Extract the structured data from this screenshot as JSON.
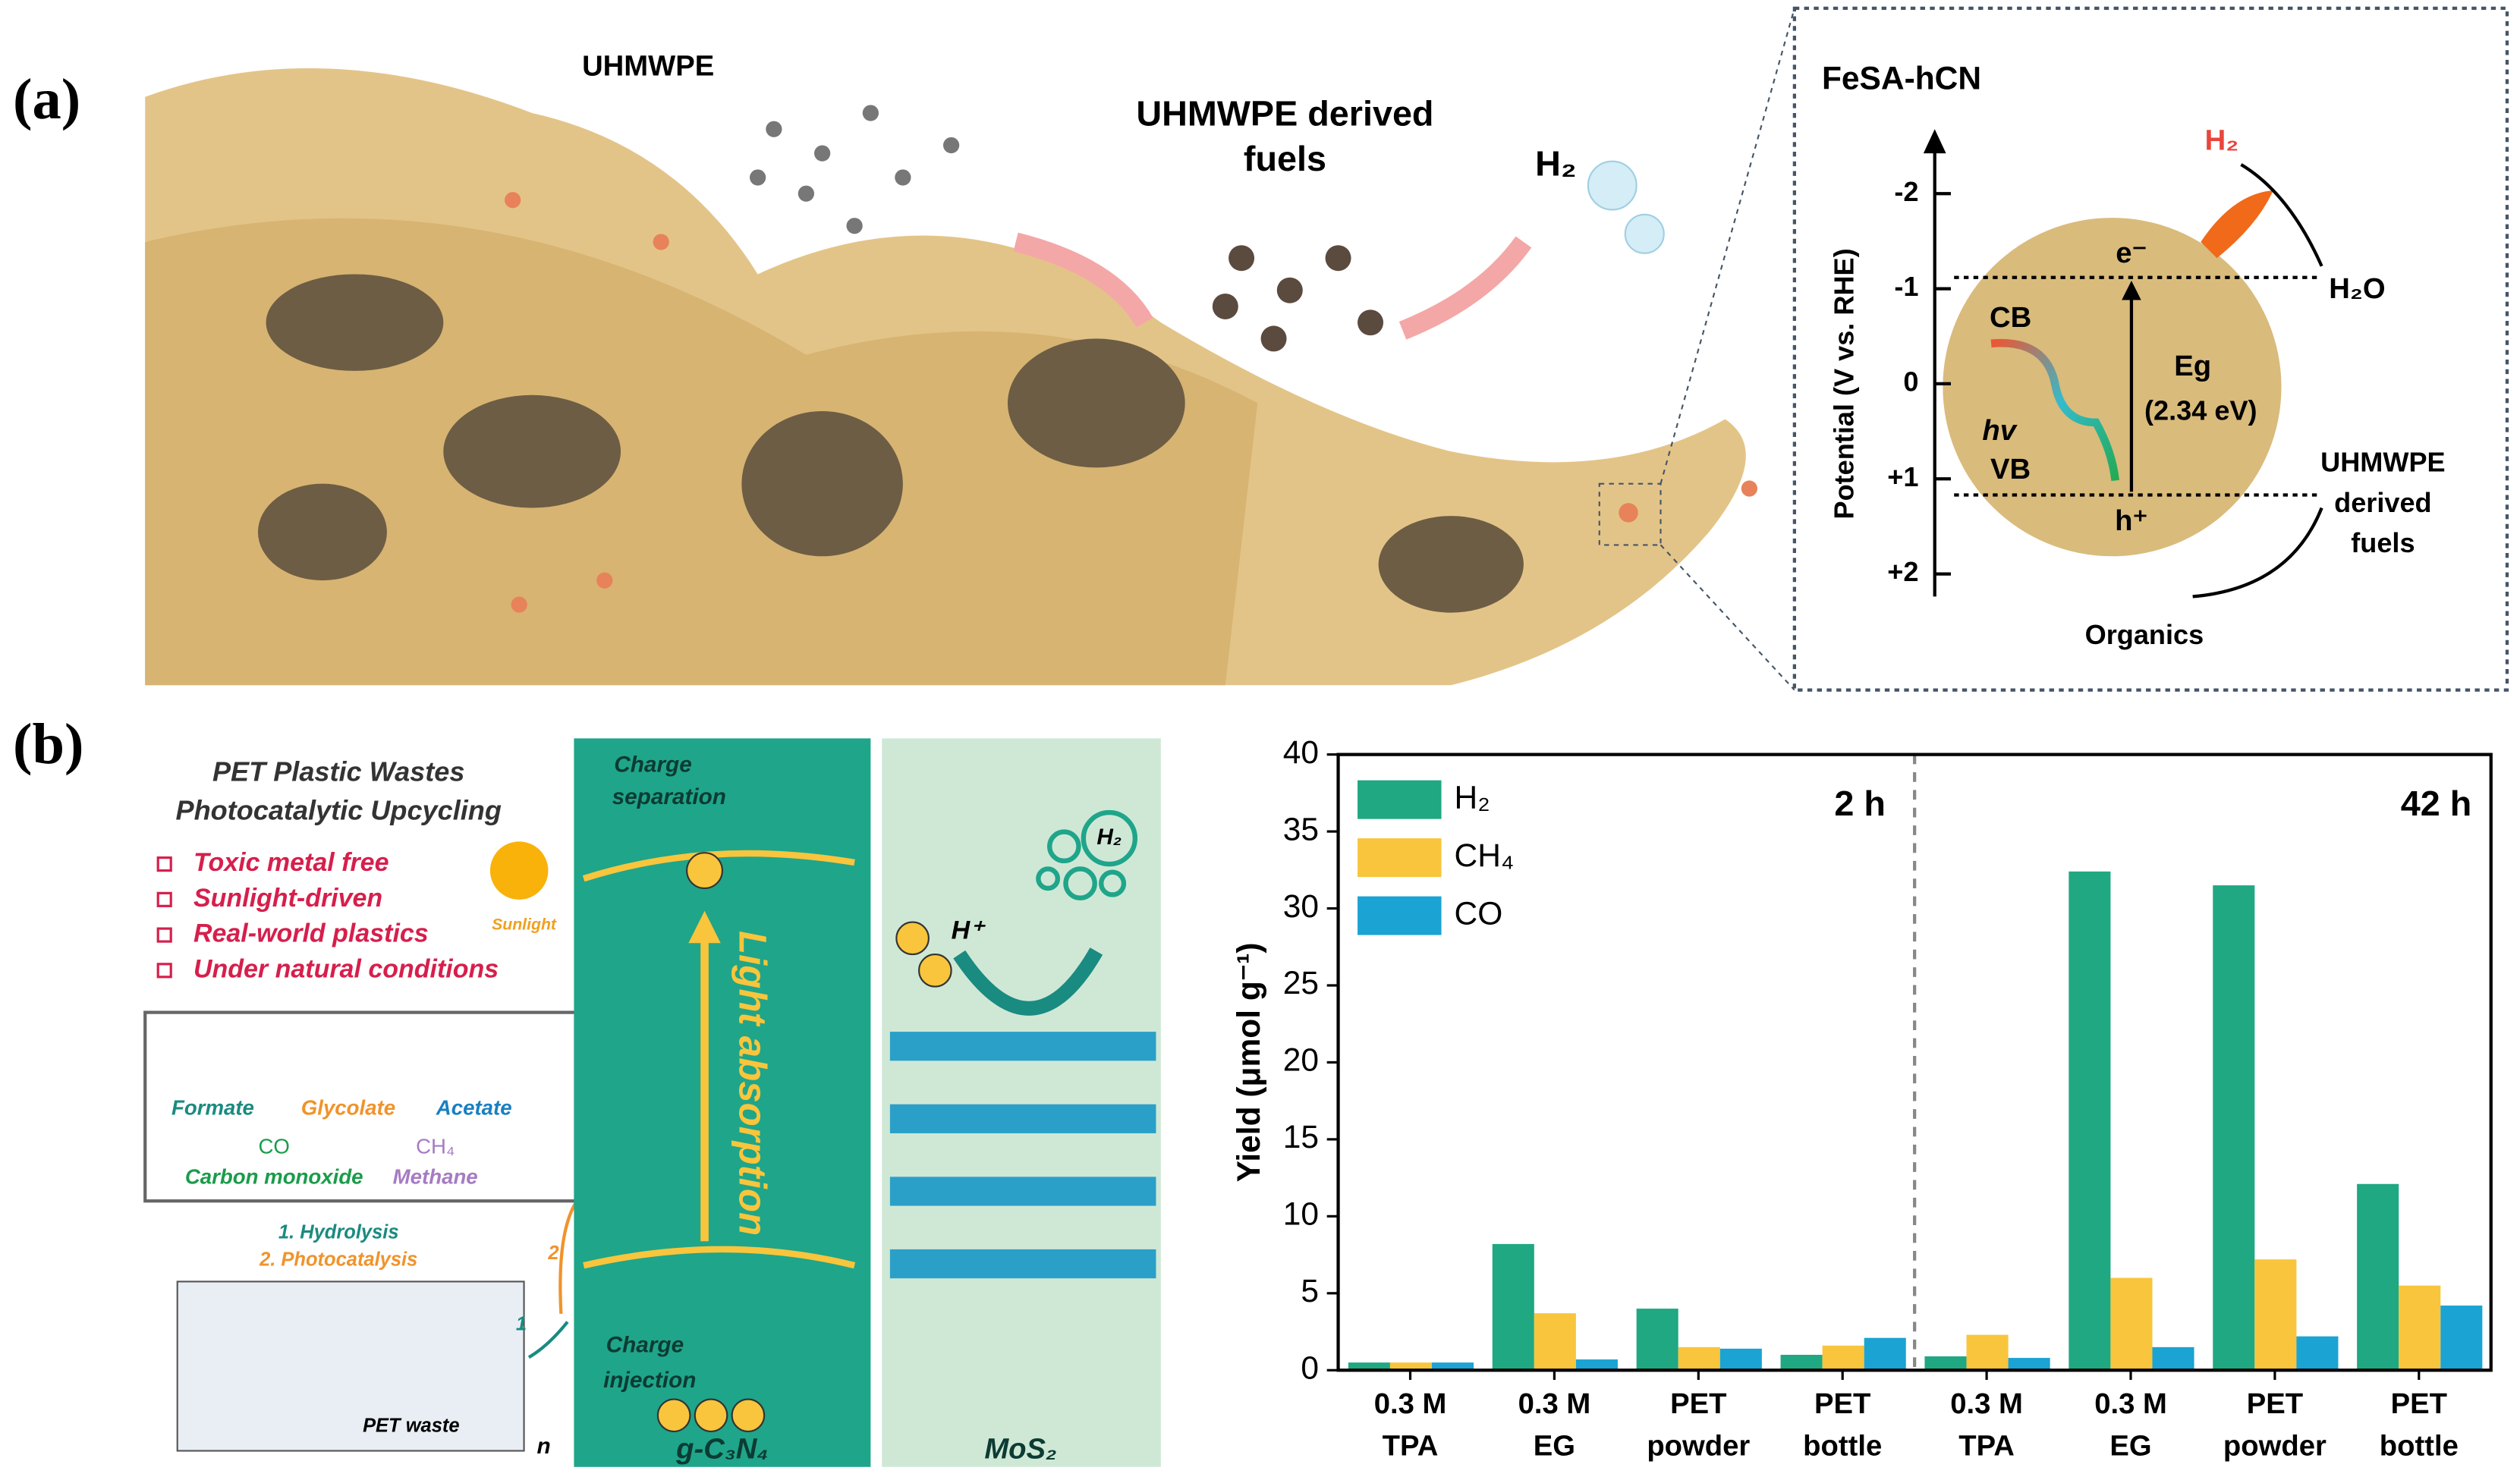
{
  "panel_a": {
    "label": "(a)",
    "plastic": "UHMWPE",
    "fuels_lines": [
      "UHMWPE derived",
      "fuels"
    ],
    "gas": "H₂",
    "inset": {
      "title": "FeSA-hCN",
      "axis_label": "Potential (V vs. RHE)",
      "ticks": [
        "-2",
        "-1",
        "0",
        "+1",
        "+2"
      ],
      "h2": "H₂",
      "h2o": "H₂O",
      "electron": "e⁻",
      "cb": "CB",
      "eg": "Eg",
      "eg_value": "(2.34 eV)",
      "hv": "hv",
      "vb": "VB",
      "hole": "h⁺",
      "fuels_lines": [
        "UHMWPE",
        "derived",
        "fuels"
      ],
      "organics": "Organics"
    }
  },
  "panel_b": {
    "label": "(b)",
    "title_lines": [
      "PET Plastic Wastes",
      "Photocatalytic Upcycling"
    ],
    "bullets": [
      "Toxic metal free",
      "Sunlight-driven",
      "Real-world plastics",
      "Under natural conditions"
    ],
    "products": {
      "formate": "Formate",
      "glycolate": "Glycolate",
      "acetate": "Acetate",
      "co": "CO",
      "co_name": "Carbon monoxide",
      "ch4": "CH₄",
      "ch4_name": "Methane"
    },
    "steps": [
      "1. Hydrolysis",
      "2. Photocatalysis"
    ],
    "step_numbers": [
      "1",
      "2"
    ],
    "pet_waste": "PET waste",
    "n": "n",
    "sunlight": "Sunlight",
    "charge_separation": [
      "Charge",
      "separation"
    ],
    "light_absorption": "Light absorption",
    "charge_injection": [
      "Charge",
      "injection"
    ],
    "gcn": "g-C₃N₄",
    "mos2": "MoS₂",
    "proton": "H⁺",
    "h2": "H₂"
  },
  "chart_data": {
    "type": "bar",
    "y_label": "Yield (μmol g⁻¹)",
    "categories": [
      [
        "0.3 M",
        "TPA"
      ],
      [
        "0.3 M",
        "EG"
      ],
      [
        "PET",
        "powder"
      ],
      [
        "PET",
        "bottle"
      ],
      [
        "0.3 M",
        "TPA"
      ],
      [
        "0.3 M",
        "EG"
      ],
      [
        "PET",
        "powder"
      ],
      [
        "PET",
        "bottle"
      ]
    ],
    "annotations": [
      "2 h",
      "42 h"
    ],
    "series": [
      {
        "name": "H₂",
        "color": "#1fa882",
        "values": [
          0.5,
          8.2,
          4.0,
          1.0,
          0.9,
          32.4,
          31.5,
          12.1
        ]
      },
      {
        "name": "CH₄",
        "color": "#f8c53c",
        "values": [
          0.5,
          3.7,
          1.5,
          1.6,
          2.3,
          6.0,
          7.2,
          5.5
        ]
      },
      {
        "name": "CO",
        "color": "#1ba3d3",
        "values": [
          0.5,
          0.7,
          1.4,
          2.1,
          0.8,
          1.5,
          2.2,
          4.2
        ]
      }
    ],
    "ylim": [
      0,
      40
    ],
    "yticks": [
      0,
      5,
      10,
      15,
      20,
      25,
      30,
      35,
      40
    ],
    "legend": "upper left"
  }
}
